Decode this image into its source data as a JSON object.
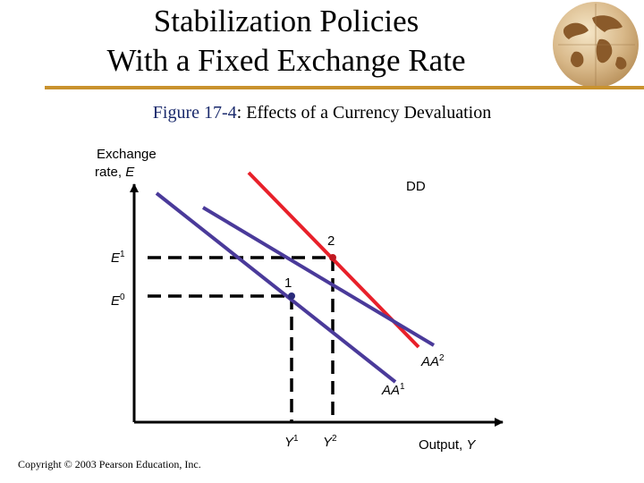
{
  "slide": {
    "title_line1": "Stabilization Policies",
    "title_line2": "With a Fixed Exchange Rate"
  },
  "figure": {
    "number": "Figure 17-4",
    "caption": ": Effects of a Currency Devaluation"
  },
  "axes": {
    "y_label_line1": "Exchange",
    "y_label_line2": "rate, ",
    "y_label_var": "E",
    "x_label": "Output, ",
    "x_label_var": "Y"
  },
  "curves": {
    "dd": "DD",
    "aa2_base": "AA",
    "aa2_sup": "2",
    "aa1_base": "AA",
    "aa1_sup": "1"
  },
  "points": {
    "p1": "1",
    "p2": "2"
  },
  "ticks": {
    "e1_base": "E",
    "e1_sup": "1",
    "e0_base": "E",
    "e0_sup": "0",
    "y1_base": "Y",
    "y1_sup": "1",
    "y2_base": "Y",
    "y2_sup": "2"
  },
  "colors": {
    "dd_curve": "#e8202a",
    "aa_curves": "#4a3a9a",
    "accent_rule": "#c9922e"
  },
  "copyright": "Copyright © 2003 Pearson Education, Inc."
}
